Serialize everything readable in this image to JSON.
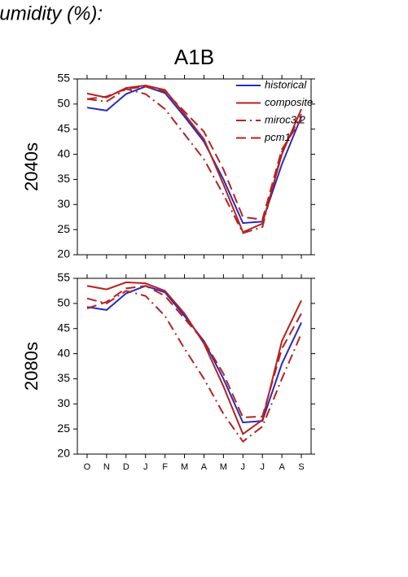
{
  "page_title": "humidity (%):",
  "chart_data": [
    {
      "type": "line",
      "title": "A1B",
      "ylabel": "2040s",
      "ylim": [
        20,
        55
      ],
      "yticks": [
        20,
        25,
        30,
        35,
        40,
        45,
        50,
        55
      ],
      "legend": "upper right",
      "series": [
        {
          "name": "historical",
          "color": "#2b2bb8",
          "style": "solid",
          "values": [
            49.3,
            48.7,
            52,
            53.5,
            52.2,
            47.5,
            42.5,
            35,
            26.3,
            26.6,
            38,
            47.5
          ]
        },
        {
          "name": "composite",
          "color": "#b52222",
          "style": "solid",
          "values": [
            52.1,
            51.3,
            53.2,
            53.7,
            52.8,
            48,
            43,
            34,
            24.5,
            26.2,
            40,
            49
          ]
        },
        {
          "name": "miroc3.2",
          "color": "#b52222",
          "style": "dashdot",
          "values": [
            51,
            50.5,
            53,
            52,
            49,
            44,
            39,
            32,
            24.3,
            25.5,
            40.5,
            48
          ]
        },
        {
          "name": "pcm1",
          "color": "#b52222",
          "style": "dash",
          "values": [
            51,
            51.5,
            53,
            53.5,
            52.5,
            48.5,
            44.5,
            37,
            27.5,
            27,
            41,
            47
          ]
        }
      ]
    },
    {
      "type": "line",
      "ylabel": "2080s",
      "categories": [
        "O",
        "N",
        "D",
        "J",
        "F",
        "M",
        "A",
        "M",
        "J",
        "J",
        "A",
        "S"
      ],
      "ylim": [
        20,
        55
      ],
      "yticks": [
        20,
        25,
        30,
        35,
        40,
        45,
        50,
        55
      ],
      "series": [
        {
          "color": "#2b2bb8",
          "style": "solid",
          "values": [
            49.3,
            48.7,
            52,
            53.5,
            52.2,
            47.5,
            42.5,
            35,
            26.3,
            26.6,
            38,
            46.2
          ]
        },
        {
          "color": "#b52222",
          "style": "solid",
          "values": [
            53.5,
            52.8,
            54.2,
            54,
            52.5,
            48,
            42,
            33.5,
            24,
            26.8,
            42.5,
            50.6
          ]
        },
        {
          "color": "#b52222",
          "style": "dashdot",
          "values": [
            51,
            50,
            52.5,
            51.5,
            47.5,
            41,
            35,
            28,
            22.5,
            25.5,
            35,
            44
          ]
        },
        {
          "color": "#b52222",
          "style": "dash",
          "values": [
            49,
            50.3,
            53,
            53.5,
            51.5,
            47,
            42.5,
            36,
            27.3,
            27.5,
            41,
            48
          ]
        }
      ]
    }
  ]
}
